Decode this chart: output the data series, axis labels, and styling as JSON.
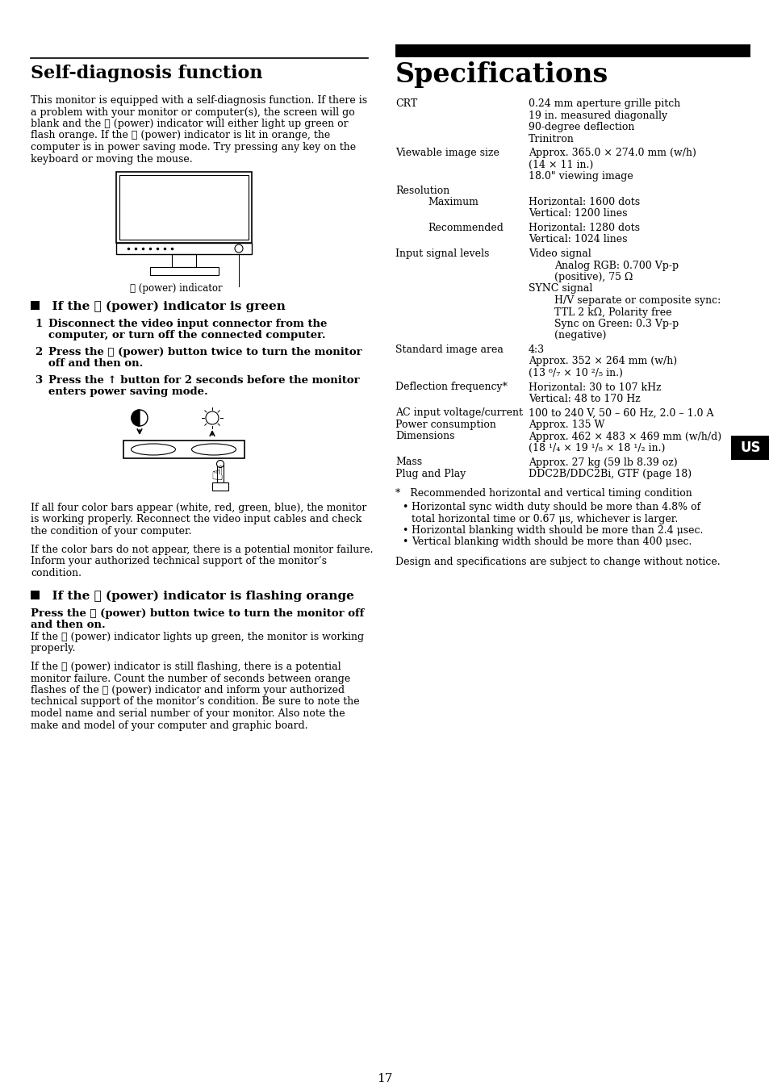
{
  "bg_color": "#ffffff",
  "page_number": "17",
  "left_column": {
    "section_title": "Self-diagnosis function",
    "intro_text": "This monitor is equipped with a self-diagnosis function. If there is\na problem with your monitor or computer(s), the screen will go\nblank and the ⏻ (power) indicator will either light up green or\nflash orange. If the ⏻ (power) indicator is lit in orange, the\ncomputer is in power saving mode. Try pressing any key on the\nkeyboard or moving the mouse.",
    "green_section_title": "  If the ⏻ (power) indicator is green",
    "steps": [
      {
        "num": "1",
        "text": "Disconnect the video input connector from the\ncomputer, or turn off the connected computer."
      },
      {
        "num": "2",
        "text": "Press the ⏻ (power) button twice to turn the monitor\noff and then on."
      },
      {
        "num": "3",
        "text": "Press the ↑ button for 2 seconds before the monitor\nenters power saving mode."
      }
    ],
    "after_diagram_text_1": "If all four color bars appear (white, red, green, blue), the monitor\nis working properly. Reconnect the video input cables and check\nthe condition of your computer.",
    "after_diagram_text_2": "If the color bars do not appear, there is a potential monitor failure.\nInform your authorized technical support of the monitor’s\ncondition.",
    "orange_section_title": "  If the ⏻ (power) indicator is flashing orange",
    "orange_bold_text": "Press the ⏻ (power) button twice to turn the monitor off\nand then on.",
    "orange_text1": "If the ⏻ (power) indicator lights up green, the monitor is working\nproperly.",
    "orange_text2": "If the ⏻ (power) indicator is still flashing, there is a potential\nmonitor failure. Count the number of seconds between orange\nflashes of the ⏻ (power) indicator and inform your authorized\ntechnical support of the monitor’s condition. Be sure to note the\nmodel name and serial number of your monitor. Also note the\nmake and model of your computer and graphic board."
  },
  "right_column": {
    "section_title": "Specifications",
    "specs": [
      {
        "label": "CRT",
        "indent": 0,
        "value": "0.24 mm aperture grille pitch\n19 in. measured diagonally\n90-degree deflection\nTrinitron"
      },
      {
        "label": "Viewable image size",
        "indent": 0,
        "value": "Approx. 365.0 × 274.0 mm (w/h)\n(14 × 11 in.)\n18.0\" viewing image"
      },
      {
        "label": "Resolution",
        "indent": 0,
        "value": ""
      },
      {
        "label": "Maximum",
        "indent": 1,
        "value": "Horizontal: 1600 dots\nVertical: 1200 lines"
      },
      {
        "label": "Recommended",
        "indent": 1,
        "value": "Horizontal: 1280 dots\nVertical: 1024 lines"
      },
      {
        "label": "Input signal levels",
        "indent": 0,
        "value": "Video signal\n    Analog RGB: 0.700 Vp-p\n    (positive), 75 Ω\nSYNC signal\n    H/V separate or composite sync:\n    TTL 2 kΩ, Polarity free\n    Sync on Green: 0.3 Vp-p\n    (negative)"
      },
      {
        "label": "Standard image area",
        "indent": 0,
        "value": "4:3\nApprox. 352 × 264 mm (w/h)\n(13 ⁶/₇ × 10 ²/₅ in.)"
      },
      {
        "label": "Deflection frequency*",
        "indent": 0,
        "value": "Horizontal: 30 to 107 kHz\nVertical: 48 to 170 Hz"
      },
      {
        "label": "AC input voltage/current",
        "indent": 0,
        "value": "100 to 240 V, 50 – 60 Hz, 2.0 – 1.0 A"
      },
      {
        "label": "Power consumption",
        "indent": 0,
        "value": "Approx. 135 W"
      },
      {
        "label": "Dimensions",
        "indent": 0,
        "value": "Approx. 462 × 483 × 469 mm (w/h/d)\n(18 ¹/₄ × 19 ¹/₈ × 18 ¹/₂ in.)"
      },
      {
        "label": "Mass",
        "indent": 0,
        "value": "Approx. 27 kg (59 lb 8.39 oz)"
      },
      {
        "label": "Plug and Play",
        "indent": 0,
        "value": "DDC2B/DDC2Bi, GTF (page 18)"
      }
    ],
    "footnote_star": "*   Recommended horizontal and vertical timing condition",
    "footnote_bullets": [
      "Horizontal sync width duty should be more than 4.8% of\ntotal horizontal time or 0.67 μs, whichever is larger.",
      "Horizontal blanking width should be more than 2.4 μsec.",
      "Vertical blanking width should be more than 400 μsec."
    ],
    "design_note": "Design and specifications are subject to change without notice."
  }
}
